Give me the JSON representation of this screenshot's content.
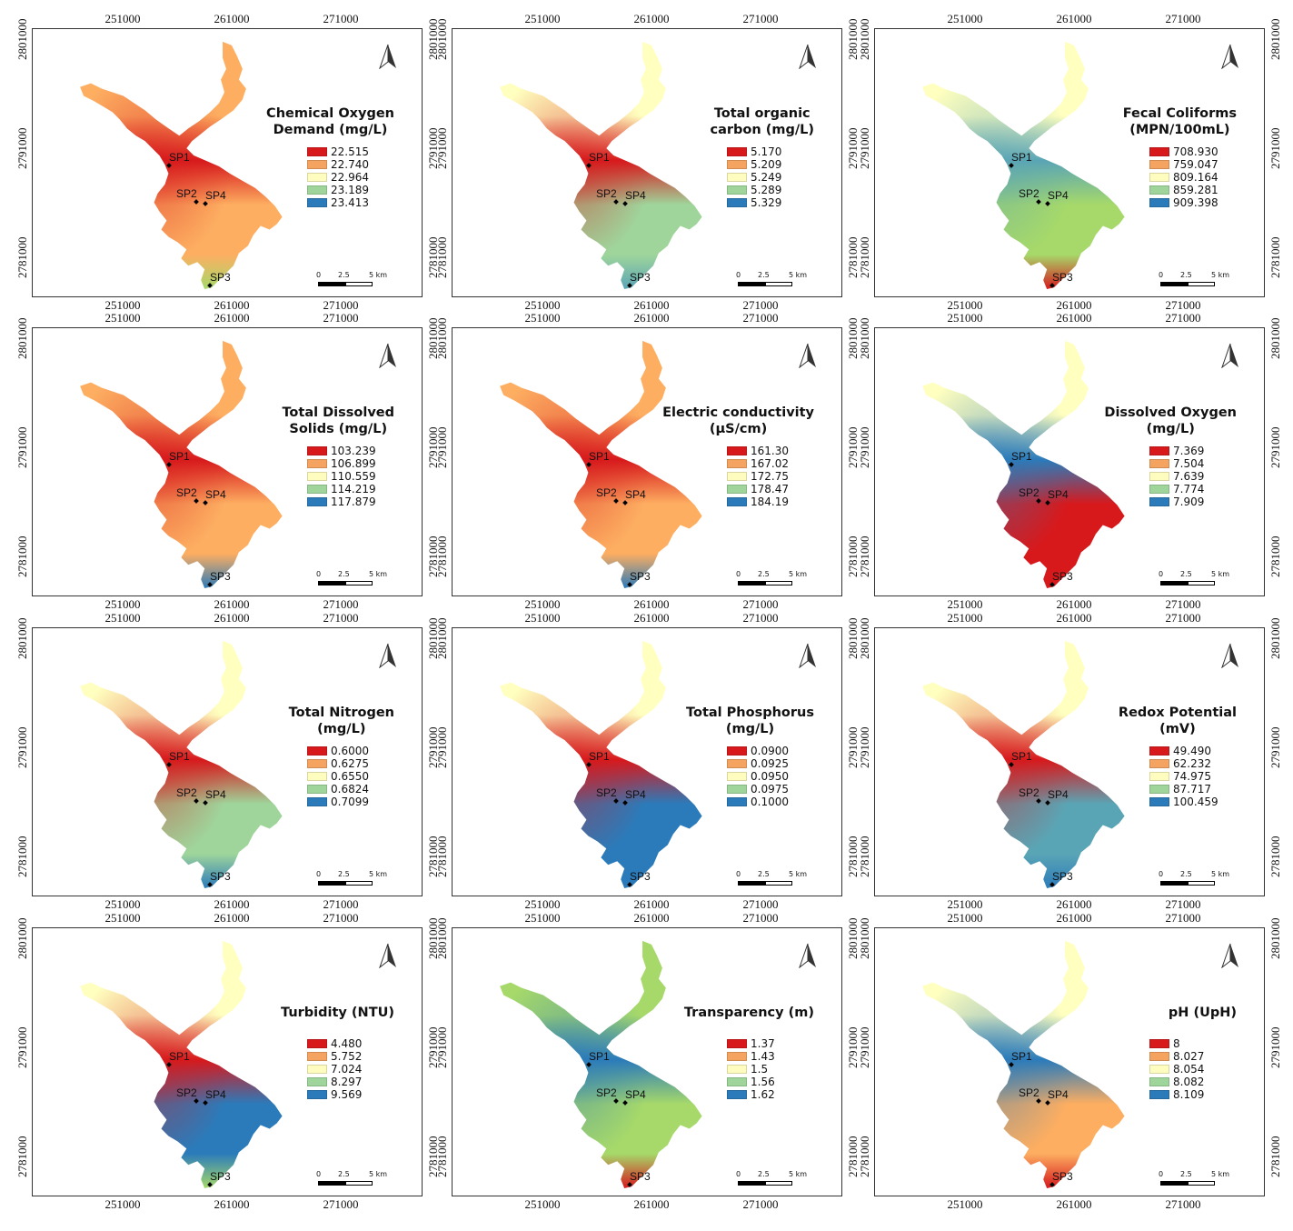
{
  "axis": {
    "x_ticks": [
      "251000",
      "261000",
      "271000"
    ],
    "y_ticks": [
      "2781000",
      "2791000",
      "2801000"
    ]
  },
  "scale_bar": {
    "zero": "0",
    "mid": "2.5",
    "end": "5 km"
  },
  "sites": [
    "SP1",
    "SP2",
    "SP3",
    "SP4"
  ],
  "palette": [
    "#d7191c",
    "#f4a460",
    "#fffcbf",
    "#9fd59b",
    "#2b7bba"
  ],
  "maps": [
    {
      "title": "Chemical Oxygen\nDemand (mg/L)",
      "legend": [
        "22.515",
        "22.740",
        "22.964",
        "23.189",
        "23.413"
      ]
    },
    {
      "title": "Total organic\ncarbon (mg/L)",
      "legend": [
        "5.170",
        "5.209",
        "5.249",
        "5.289",
        "5.329"
      ]
    },
    {
      "title": "Fecal Coliforms\n(MPN/100mL)",
      "legend": [
        "708.930",
        "759.047",
        "809.164",
        "859.281",
        "909.398"
      ]
    },
    {
      "title": "Total Dissolved\nSolids (mg/L)",
      "legend": [
        "103.239",
        "106.899",
        "110.559",
        "114.219",
        "117.879"
      ]
    },
    {
      "title": "Electric conductivity\n(µS/cm)",
      "legend": [
        "161.30",
        "167.02",
        "172.75",
        "178.47",
        "184.19"
      ]
    },
    {
      "title": "Dissolved Oxygen\n(mg/L)",
      "legend": [
        "7.369",
        "7.504",
        "7.639",
        "7.774",
        "7.909"
      ]
    },
    {
      "title": "Total Nitrogen\n(mg/L)",
      "legend": [
        "0.6000",
        "0.6275",
        "0.6550",
        "0.6824",
        "0.7099"
      ]
    },
    {
      "title": "Total Phosphorus\n(mg/L)",
      "legend": [
        "0.0900",
        "0.0925",
        "0.0950",
        "0.0975",
        "0.1000"
      ]
    },
    {
      "title": "Redox Potential\n(mV)",
      "legend": [
        "49.490",
        "62.232",
        "74.975",
        "87.717",
        "100.459"
      ]
    },
    {
      "title": "Turbidity (NTU)",
      "legend": [
        "4.480",
        "5.752",
        "7.024",
        "8.297",
        "9.569"
      ]
    },
    {
      "title": "Transparency (m)",
      "legend": [
        "1.37",
        "1.43",
        "1.5",
        "1.56",
        "1.62"
      ]
    },
    {
      "title": "pH (UpH)",
      "legend": [
        "8",
        "8.027",
        "8.054",
        "8.082",
        "8.109"
      ]
    }
  ],
  "zone_colors": [
    [
      "#d7191c",
      "#fdae61",
      "#a6d96a",
      "#fdae61"
    ],
    [
      "#d7191c",
      "#9fd59b",
      "#5aa5b5",
      "#ffffbf"
    ],
    [
      "#5aa5b5",
      "#a6d96a",
      "#d7191c",
      "#ffffbf"
    ],
    [
      "#d7191c",
      "#fdae61",
      "#2b7bba",
      "#fdae61"
    ],
    [
      "#d7191c",
      "#fdae61",
      "#2b7bba",
      "#fdae61"
    ],
    [
      "#2b7bba",
      "#d7191c",
      "#d7191c",
      "#ffffbf"
    ],
    [
      "#d7191c",
      "#9fd59b",
      "#2b7bba",
      "#ffffbf"
    ],
    [
      "#d7191c",
      "#2b7bba",
      "#2b7bba",
      "#ffffbf"
    ],
    [
      "#d7191c",
      "#5aa5b5",
      "#2b7bba",
      "#ffffbf"
    ],
    [
      "#d7191c",
      "#2b7bba",
      "#a6d96a",
      "#ffffbf"
    ],
    [
      "#2b7bba",
      "#a6d96a",
      "#d7191c",
      "#a6d96a"
    ],
    [
      "#2b7bba",
      "#fdae61",
      "#d7191c",
      "#ffffbf"
    ]
  ]
}
